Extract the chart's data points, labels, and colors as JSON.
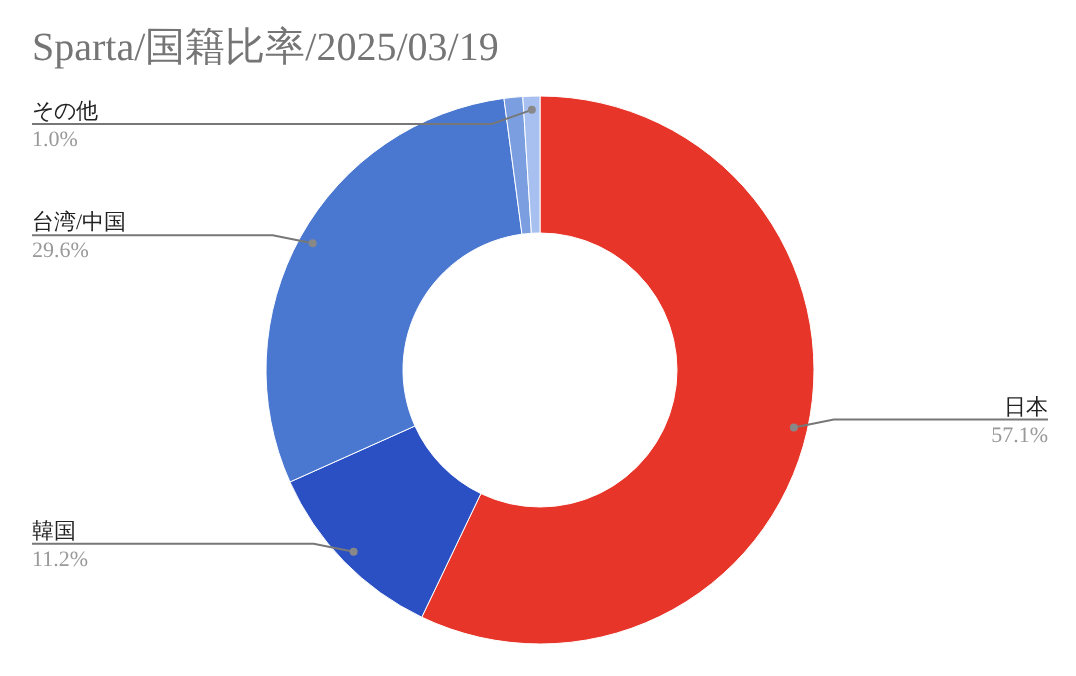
{
  "chart_data": {
    "type": "donut",
    "title": "Sparta/国籍比率/2025/03/19",
    "categories": [
      "日本",
      "韓国",
      "台湾/中国",
      null,
      "その他"
    ],
    "values": [
      57.1,
      11.2,
      29.6,
      1.1,
      1.0
    ],
    "colors": [
      "#e8352a",
      "#2b50c4",
      "#4a78d0",
      "#7a9ee0",
      "#a8c0f0"
    ],
    "value_labels": [
      "57.1%",
      "11.2%",
      "29.6%",
      null,
      "1.0%"
    ]
  }
}
